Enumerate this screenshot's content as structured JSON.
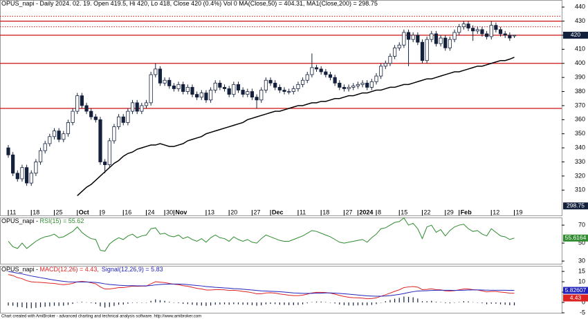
{
  "chart_data": [
    {
      "type": "candlestick",
      "title": "OPUS_napi - Daily 2024. 02. 19. Open 419.5, Hi 420, Lo 418, Close 420 (0.4%) Vol 0 MA(Close,50) = 404.31, MA1(Close,200) = 298.75",
      "categories": [
        "11",
        null,
        null,
        null,
        null,
        "18",
        null,
        null,
        null,
        null,
        "25",
        null,
        null,
        null,
        null,
        "Oct",
        null,
        null,
        null,
        null,
        "9",
        null,
        null,
        null,
        null,
        "16",
        null,
        null,
        null,
        null,
        "24",
        null,
        null,
        null,
        "30",
        null,
        "Nov",
        null,
        null,
        null,
        null,
        null,
        null,
        "13",
        null,
        null,
        null,
        null,
        "20",
        null,
        null,
        null,
        null,
        "27",
        null,
        null,
        null,
        "Dec",
        null,
        null,
        null,
        null,
        null,
        "11",
        null,
        null,
        null,
        null,
        "18",
        null,
        null,
        null,
        null,
        "27",
        null,
        null,
        "2024",
        null,
        null,
        null,
        "8",
        null,
        null,
        null,
        null,
        "15",
        null,
        null,
        null,
        null,
        "22",
        null,
        null,
        null,
        null,
        "29",
        null,
        null,
        "Feb",
        null,
        null,
        null,
        null,
        null,
        null,
        "12",
        null,
        null,
        null,
        null,
        "19"
      ],
      "open": [
        340,
        335,
        322,
        318,
        326,
        315,
        322,
        330,
        338,
        343,
        348,
        352,
        346,
        350,
        358,
        366,
        377,
        370,
        366,
        362,
        360,
        330,
        328,
        345,
        355,
        362,
        358,
        366,
        372,
        366,
        370,
        372,
        392,
        396,
        386,
        388,
        384,
        382,
        385,
        380,
        383,
        378,
        376,
        379,
        374,
        381,
        386,
        383,
        382,
        378,
        385,
        381,
        378,
        380,
        376,
        374,
        381,
        388,
        386,
        383,
        381,
        380,
        380,
        382,
        385,
        388,
        392,
        397,
        396,
        394,
        392,
        390,
        386,
        383,
        382,
        383,
        384,
        385,
        386,
        383,
        387,
        391,
        398,
        400,
        405,
        411,
        413,
        422,
        417,
        420,
        415,
        402,
        417,
        421,
        414,
        418,
        411,
        417,
        422,
        426,
        428,
        425,
        423,
        424,
        421,
        419,
        427,
        424,
        421,
        420,
        419.5
      ],
      "high": [
        342,
        337,
        324,
        328,
        328,
        324,
        332,
        340,
        345,
        350,
        354,
        354,
        352,
        360,
        368,
        379,
        379,
        372,
        368,
        364,
        362,
        332,
        347,
        357,
        364,
        364,
        368,
        374,
        374,
        372,
        374,
        394,
        400,
        398,
        390,
        390,
        386,
        387,
        387,
        385,
        385,
        380,
        381,
        381,
        383,
        388,
        388,
        385,
        384,
        387,
        387,
        383,
        382,
        382,
        378,
        383,
        390,
        390,
        388,
        385,
        383,
        382,
        384,
        387,
        390,
        394,
        407,
        399,
        398,
        396,
        394,
        392,
        388,
        385,
        385,
        386,
        387,
        388,
        388,
        389,
        393,
        400,
        402,
        407,
        413,
        415,
        424,
        424,
        422,
        422,
        417,
        419,
        423,
        423,
        420,
        420,
        419,
        424,
        428,
        430,
        430,
        427,
        426,
        426,
        423,
        430,
        429,
        426,
        423,
        422,
        420
      ],
      "low": [
        333,
        320,
        316,
        316,
        313,
        313,
        320,
        328,
        336,
        341,
        346,
        344,
        344,
        348,
        356,
        364,
        368,
        364,
        360,
        358,
        328,
        322,
        326,
        343,
        353,
        356,
        356,
        364,
        364,
        364,
        368,
        370,
        390,
        384,
        384,
        382,
        380,
        380,
        378,
        378,
        376,
        374,
        374,
        372,
        372,
        379,
        381,
        380,
        376,
        376,
        379,
        376,
        376,
        374,
        368,
        372,
        379,
        384,
        381,
        379,
        378,
        378,
        378,
        380,
        383,
        386,
        390,
        394,
        392,
        390,
        388,
        384,
        381,
        380,
        380,
        381,
        382,
        383,
        381,
        381,
        385,
        389,
        396,
        398,
        403,
        409,
        411,
        398,
        415,
        413,
        400,
        400,
        415,
        412,
        412,
        409,
        409,
        415,
        420,
        424,
        423,
        416,
        421,
        419,
        417,
        417,
        422,
        419,
        418,
        416,
        418
      ],
      "close": [
        335,
        322,
        318,
        326,
        315,
        322,
        330,
        338,
        343,
        348,
        352,
        346,
        350,
        358,
        366,
        377,
        370,
        366,
        362,
        360,
        330,
        328,
        345,
        355,
        362,
        358,
        366,
        372,
        366,
        370,
        372,
        392,
        396,
        386,
        388,
        384,
        382,
        385,
        380,
        383,
        378,
        376,
        379,
        374,
        381,
        386,
        383,
        382,
        378,
        385,
        381,
        378,
        380,
        376,
        374,
        381,
        388,
        386,
        383,
        381,
        380,
        380,
        382,
        385,
        388,
        392,
        397,
        396,
        394,
        392,
        390,
        386,
        383,
        382,
        383,
        384,
        385,
        386,
        383,
        387,
        391,
        398,
        400,
        405,
        411,
        413,
        422,
        417,
        420,
        415,
        402,
        417,
        421,
        414,
        418,
        411,
        417,
        422,
        426,
        428,
        425,
        423,
        424,
        421,
        419,
        427,
        424,
        421,
        420,
        418,
        420
      ],
      "color_up": "#ffffff",
      "color_down": "#14213d",
      "outline": "#14213d",
      "ma50": {
        "color": "#000000",
        "values": [
          null,
          null,
          null,
          null,
          null,
          null,
          null,
          null,
          null,
          null,
          null,
          null,
          null,
          null,
          null,
          306,
          309,
          312,
          314,
          317,
          320,
          323,
          326,
          329,
          331,
          334,
          336,
          337,
          339,
          340,
          341,
          342,
          342,
          343,
          342,
          341,
          341,
          342,
          343,
          345,
          346,
          347,
          348,
          350,
          351,
          352,
          353,
          354,
          355,
          356,
          357,
          358,
          360,
          361,
          362,
          363,
          364,
          365,
          366,
          366,
          367,
          368,
          369,
          370,
          370,
          371,
          372,
          372,
          373,
          373,
          374,
          375,
          375,
          376,
          377,
          377,
          378,
          379,
          379,
          380,
          381,
          381,
          382,
          383,
          383,
          384,
          385,
          385,
          386,
          387,
          388,
          389,
          389,
          390,
          391,
          392,
          393,
          394,
          394,
          395,
          396,
          397,
          398,
          398,
          399,
          400,
          401,
          402,
          402,
          403,
          404.31
        ]
      },
      "hlines": [
        {
          "value": 433.5,
          "style": "dotted",
          "color": "#cc1111"
        },
        {
          "value": 430,
          "style": "solid",
          "color": "#cc1111"
        },
        {
          "value": 426,
          "style": "dotted",
          "color": "#cc1111"
        },
        {
          "value": 420,
          "style": "solid",
          "color": "#cc1111"
        },
        {
          "value": 400,
          "style": "solid",
          "color": "#cc1111"
        },
        {
          "value": 368,
          "style": "solid",
          "color": "#cc1111"
        }
      ],
      "value_boxes": [
        {
          "value": 420,
          "color": "#14213d"
        },
        {
          "value": 298.75,
          "color": "#14213d"
        }
      ],
      "ylim": [
        292,
        445
      ],
      "yticks": [
        310,
        320,
        330,
        340,
        350,
        360,
        370,
        380,
        390,
        400,
        410,
        420,
        430,
        440
      ]
    },
    {
      "type": "line",
      "title": "OPUS_napi - ",
      "series": [
        {
          "name": "RSI(15) = 55.62",
          "color": "#2e8b2e",
          "values": [
            52,
            46,
            44,
            50,
            44,
            48,
            52,
            55,
            57,
            58,
            60,
            56,
            57,
            60,
            63,
            68,
            62,
            58,
            55,
            54,
            42,
            41,
            49,
            53,
            56,
            54,
            58,
            60,
            56,
            58,
            59,
            66,
            67,
            60,
            61,
            58,
            57,
            59,
            55,
            57,
            54,
            52,
            55,
            51,
            56,
            59,
            56,
            55,
            52,
            57,
            54,
            52,
            54,
            51,
            50,
            55,
            59,
            57,
            55,
            53,
            52,
            52,
            54,
            56,
            58,
            61,
            64,
            63,
            61,
            59,
            57,
            54,
            51,
            50,
            51,
            52,
            53,
            54,
            51,
            56,
            60,
            66,
            67,
            70,
            73,
            74,
            78,
            70,
            72,
            66,
            55,
            68,
            70,
            62,
            65,
            58,
            64,
            68,
            70,
            71,
            66,
            63,
            64,
            60,
            58,
            66,
            62,
            58,
            57,
            54,
            55.62
          ]
        }
      ],
      "value_boxes": [
        {
          "value": 55.6164,
          "color": "#2e8b2e"
        }
      ],
      "ylim": [
        27,
        78.5
      ],
      "yticks": [
        30,
        50,
        70
      ]
    },
    {
      "type": "line",
      "title": "OPUS_napi - ",
      "series": [
        {
          "name": "MACD(12,26) = 4.43,",
          "color": "#dd2222",
          "values": [
            13.5,
            13,
            12,
            11.5,
            10.5,
            10,
            9.8,
            9.7,
            9.5,
            9.3,
            9.2,
            8.8,
            8.6,
            8.8,
            9.2,
            10,
            10.2,
            10,
            9.5,
            9,
            7.5,
            6.5,
            6.5,
            6.8,
            7.2,
            7.2,
            7.5,
            7.9,
            7.8,
            7.9,
            7.9,
            9,
            10,
            9.8,
            9.6,
            9.2,
            8.8,
            8.6,
            8.1,
            7.8,
            7.3,
            6.8,
            6.5,
            6,
            6,
            6.2,
            6.2,
            6.1,
            5.8,
            5.9,
            5.7,
            5.3,
            5.1,
            4.7,
            4.2,
            4.2,
            4.6,
            4.7,
            4.5,
            4.1,
            3.8,
            3.5,
            3.3,
            3.3,
            3.5,
            4,
            4.6,
            4.9,
            4.9,
            4.8,
            4.5,
            4,
            3.4,
            2.9,
            2.5,
            2.3,
            2.2,
            2.1,
            1.8,
            1.9,
            2.2,
            3,
            3.7,
            4.5,
            5.4,
            6.1,
            7.2,
            7.5,
            7.7,
            7.4,
            6.2,
            6.3,
            6.6,
            6.2,
            6.1,
            5.6,
            5.5,
            5.7,
            6.1,
            6.5,
            6.5,
            6.2,
            6,
            5.6,
            5.1,
            5.3,
            5.3,
            5,
            4.8,
            4.5,
            4.43
          ]
        },
        {
          "name": "Signal(12,26,9) = 5.83",
          "color": "#2222bb",
          "values": [
            15,
            14.6,
            14.2,
            13.8,
            13.3,
            12.8,
            12.4,
            12,
            11.6,
            11.2,
            10.8,
            10.5,
            10.2,
            10,
            9.9,
            9.9,
            9.9,
            9.9,
            9.8,
            9.7,
            9.4,
            9,
            8.7,
            8.5,
            8.3,
            8.2,
            8.1,
            8.1,
            8,
            8,
            8,
            8.2,
            8.5,
            8.7,
            8.8,
            8.9,
            8.9,
            8.9,
            8.8,
            8.6,
            8.4,
            8.2,
            8,
            7.7,
            7.5,
            7.3,
            7.2,
            7,
            6.9,
            6.7,
            6.6,
            6.4,
            6.2,
            6,
            5.8,
            5.6,
            5.5,
            5.4,
            5.3,
            5.2,
            5,
            4.8,
            4.6,
            4.5,
            4.4,
            4.4,
            4.4,
            4.5,
            4.5,
            4.6,
            4.6,
            4.5,
            4.4,
            4.2,
            4,
            3.8,
            3.6,
            3.4,
            3.2,
            3.1,
            3,
            3,
            3.1,
            3.3,
            3.6,
            3.9,
            4.3,
            4.8,
            5.2,
            5.5,
            5.6,
            5.7,
            5.8,
            5.9,
            5.9,
            5.9,
            5.9,
            5.8,
            5.9,
            5.9,
            6,
            6.05,
            6.05,
            6,
            5.95,
            5.9,
            5.9,
            5.9,
            5.9,
            5.85,
            5.83
          ]
        }
      ],
      "histogram": {
        "color": "#14213d",
        "values": [
          -1.5,
          -1.6,
          -2.2,
          -2.3,
          -2.8,
          -2.8,
          -2.6,
          -2.3,
          -2.1,
          -1.9,
          -1.6,
          -1.7,
          -1.6,
          -1.2,
          -0.7,
          0.1,
          0.3,
          0.1,
          -0.3,
          -0.7,
          -1.9,
          -2.5,
          -2.2,
          -1.7,
          -1.1,
          -1,
          -0.6,
          -0.2,
          -0.2,
          -0.1,
          -0.1,
          0.8,
          1.5,
          1.1,
          0.8,
          0.3,
          -0.1,
          -0.3,
          -0.7,
          -0.8,
          -1.1,
          -1.4,
          -1.5,
          -1.7,
          -1.5,
          -1.1,
          -1,
          -0.9,
          -1.1,
          -0.8,
          -0.9,
          -1.1,
          -1.1,
          -1.3,
          -1.6,
          -1.4,
          -0.9,
          -0.7,
          -0.8,
          -1.1,
          -1.2,
          -1.3,
          -1.3,
          -1.2,
          -0.9,
          -0.4,
          0.2,
          0.4,
          0.4,
          0.2,
          -0.1,
          -0.5,
          -1,
          -1.3,
          -1.5,
          -1.5,
          -1.4,
          -1.3,
          -1.4,
          -1.2,
          -0.8,
          0,
          0.6,
          1.2,
          1.8,
          2.2,
          2.9,
          2.7,
          2.5,
          1.9,
          0.6,
          0.6,
          0.8,
          0.3,
          0.2,
          -0.3,
          -0.4,
          -0.1,
          0.2,
          0.6,
          0.5,
          0.15,
          -0.05,
          -0.4,
          -0.85,
          -0.6,
          -0.6,
          -0.9,
          -1.1,
          -1.35,
          -1.4
        ]
      },
      "value_boxes": [
        {
          "value": 5.82607,
          "color": "#2222bb"
        },
        {
          "value": 4.43,
          "color": "#dd2222"
        }
      ],
      "ylim": [
        -5,
        17.7
      ],
      "yticks": [
        -5,
        0,
        5,
        10,
        15
      ]
    }
  ],
  "footer": "Chart created with AmiBroker - advanced charting and technical analysis software. http://www.amibroker.com"
}
